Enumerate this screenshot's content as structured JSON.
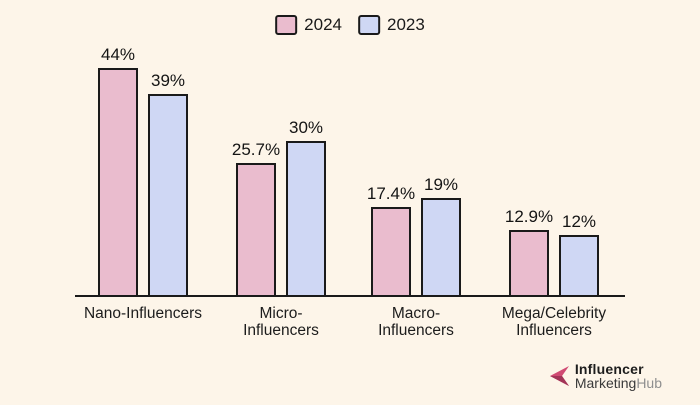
{
  "colors": {
    "background": "#fdf5e9",
    "bar_border": "#1a1a1a",
    "axis": "#1a1a1a",
    "series_2024": "#eabcce",
    "series_2023": "#cfd7f4",
    "logo_arrow_light": "#d04a73",
    "logo_arrow_dark": "#a23457"
  },
  "legend": {
    "items": [
      {
        "label": "2024",
        "color": "#eabcce"
      },
      {
        "label": "2023",
        "color": "#cfd7f4"
      }
    ]
  },
  "chart_data": {
    "type": "bar",
    "title": "",
    "xlabel": "",
    "ylabel": "",
    "categories": [
      "Nano-Influencers",
      "Micro-Influencers",
      "Macro-Influencers",
      "Mega/Celebrity Influencers"
    ],
    "category_label_lines": [
      [
        "Nano-Influencers"
      ],
      [
        "Micro-",
        "Influencers"
      ],
      [
        "Macro-",
        "Influencers"
      ],
      [
        "Mega/Celebrity",
        "Influencers"
      ]
    ],
    "series": [
      {
        "name": "2024",
        "color": "#eabcce",
        "values": [
          44,
          25.7,
          17.4,
          12.9
        ],
        "value_labels": [
          "44%",
          "25.7%",
          "17.4%",
          "12.9%"
        ]
      },
      {
        "name": "2023",
        "color": "#cfd7f4",
        "values": [
          39,
          30,
          19,
          12
        ],
        "value_labels": [
          "39%",
          "30%",
          "19%",
          "12%"
        ]
      }
    ],
    "ylim": [
      0,
      50
    ],
    "grid": false,
    "y_axis_visible": false,
    "legend_position": "top-center"
  },
  "logo": {
    "line1": "Influencer",
    "line2_dark": "Marketing",
    "line2_light": "Hub"
  }
}
